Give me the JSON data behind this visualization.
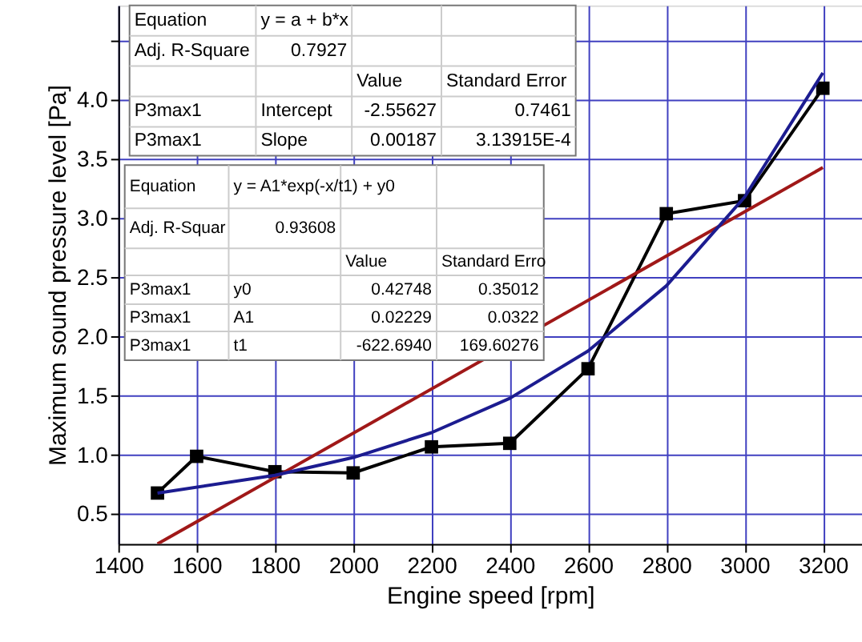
{
  "chart_data": {
    "type": "line",
    "xlabel": "Engine speed [rpm]",
    "ylabel": "Maximum sound pressure level [Pa]",
    "xlim": [
      1400,
      3300
    ],
    "xticks": [
      1400,
      1600,
      1800,
      2000,
      2200,
      2400,
      2600,
      2800,
      3000,
      3200
    ],
    "ylim": [
      0.25,
      4.8
    ],
    "yticks": [
      0.5,
      {
        "value": 1,
        "label": "1.0"
      },
      1.5,
      {
        "value": 2,
        "label": "2.0"
      },
      2.5,
      {
        "value": 3,
        "label": "3.0"
      },
      3.5,
      {
        "value": 4,
        "label": "4.0"
      },
      {
        "value": 4.5,
        "label": null
      }
    ],
    "line_style": "solid",
    "grid": true,
    "series": [
      {
        "color": "#000000",
        "marker": "square",
        "x": [
          1500,
          1600,
          1800,
          2000,
          2200,
          2400,
          2600,
          2800,
          3000,
          3200
        ],
        "values": [
          0.68,
          0.99,
          0.86,
          0.85,
          1.07,
          1.1,
          1.73,
          3.04,
          3.15,
          4.1
        ]
      },
      {
        "color": "#a01818",
        "marker": "none",
        "x": [
          1500,
          3200
        ],
        "values": [
          0.25,
          3.43
        ]
      },
      {
        "color": "#1c1c90",
        "marker": "none",
        "x": [
          1500,
          1800,
          2000,
          2200,
          2400,
          2600,
          2800,
          3000,
          3200
        ],
        "values": [
          0.68,
          0.83,
          0.98,
          1.19,
          1.48,
          1.88,
          2.43,
          3.18,
          4.23
        ]
      }
    ],
    "annotations": [
      "Equation",
      "y = a + b*x",
      "Adj. R-Square",
      "0.7927",
      "Value",
      "Standard Error",
      "P3max1",
      "Intercept",
      "-2.55627",
      "0.7461",
      "P3max1",
      "Slope",
      "0.00187",
      "3.13915E-4",
      "Equation",
      "y = A1*exp(-x/t1) + y0",
      "Adj. R-Squar",
      "0.93608",
      "Value",
      "Standard Erro",
      "P3max1",
      "y0",
      "0.42748",
      "0.35012",
      "P3max1",
      "A1",
      "0.02229",
      "0.0322",
      "P3max1",
      "t1",
      "-622.6940",
      "169.60276"
    ]
  }
}
